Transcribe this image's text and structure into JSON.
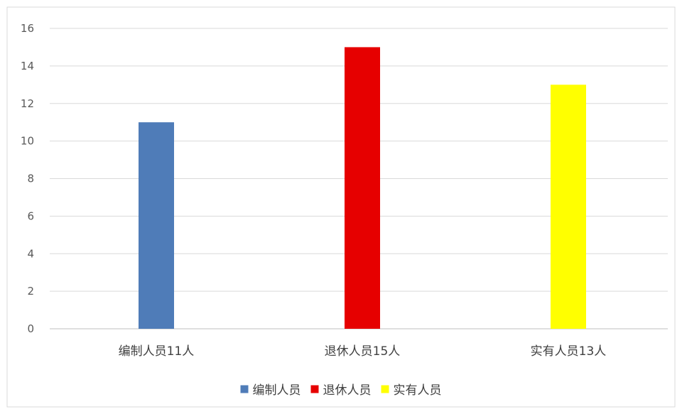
{
  "chart_data": {
    "type": "bar",
    "categories": [
      "编制人员11人",
      "退休人员15人",
      "实有人员13人"
    ],
    "values": [
      11,
      15,
      13
    ],
    "colors": [
      "#4f7cb8",
      "#e60000",
      "#ffff00"
    ],
    "ylim": [
      0,
      16
    ],
    "yticks": [
      0,
      2,
      4,
      6,
      8,
      10,
      12,
      14,
      16
    ],
    "grid": true,
    "legend_position": "bottom",
    "legend": [
      {
        "label": "编制人员",
        "color": "#4f7cb8"
      },
      {
        "label": "退休人员",
        "color": "#e60000"
      },
      {
        "label": "实有人员",
        "color": "#ffff00"
      }
    ]
  }
}
